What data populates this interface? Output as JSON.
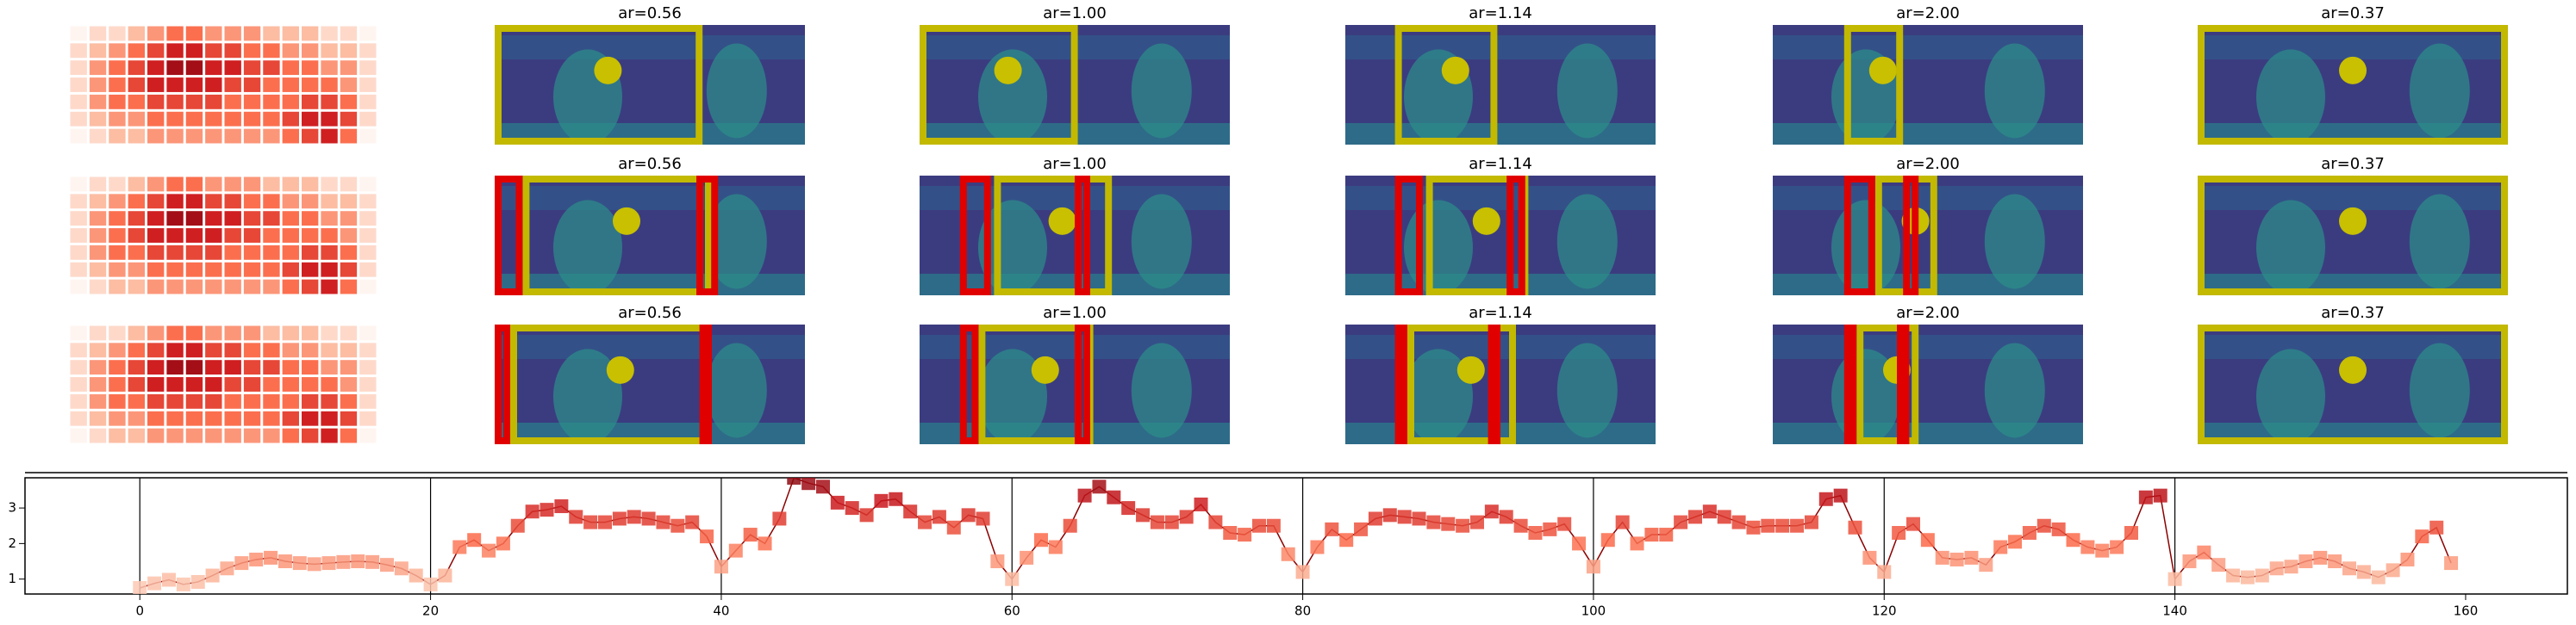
{
  "image_titles": [
    [
      "ar=0.56",
      "ar=1.00",
      "ar=1.14",
      "ar=2.00",
      "ar=0.37"
    ],
    [
      "ar=0.56",
      "ar=1.00",
      "ar=1.14",
      "ar=2.00",
      "ar=0.37"
    ],
    [
      "ar=0.56",
      "ar=1.00",
      "ar=1.14",
      "ar=2.00",
      "ar=0.37"
    ]
  ],
  "chart_data": [
    {
      "type": "heatmap",
      "colormap": "Reds",
      "values": [
        [
          1,
          2,
          2,
          3,
          4,
          5,
          5,
          4,
          4,
          4,
          3,
          3,
          3,
          2,
          2,
          1
        ],
        [
          2,
          3,
          4,
          5,
          6,
          7,
          7,
          6,
          6,
          5,
          5,
          4,
          4,
          3,
          3,
          2
        ],
        [
          2,
          4,
          5,
          6,
          7,
          8,
          8,
          7,
          7,
          6,
          6,
          5,
          5,
          4,
          4,
          2
        ],
        [
          2,
          4,
          5,
          6,
          7,
          7,
          7,
          7,
          6,
          6,
          5,
          5,
          5,
          5,
          4,
          2
        ],
        [
          2,
          4,
          5,
          5,
          6,
          6,
          6,
          6,
          5,
          5,
          5,
          5,
          6,
          6,
          5,
          2
        ],
        [
          2,
          3,
          4,
          4,
          5,
          5,
          5,
          5,
          5,
          5,
          5,
          6,
          7,
          7,
          6,
          2
        ],
        [
          1,
          2,
          3,
          3,
          4,
          4,
          4,
          4,
          4,
          4,
          4,
          5,
          6,
          7,
          5,
          1
        ]
      ]
    },
    {
      "type": "line",
      "colormap": "Reds",
      "color": "#8b0000",
      "x": [
        0,
        1,
        2,
        3,
        4,
        5,
        6,
        7,
        8,
        9,
        10,
        11,
        12,
        13,
        14,
        15,
        16,
        17,
        18,
        19,
        20,
        21,
        22,
        23,
        24,
        25,
        26,
        27,
        28,
        29,
        30,
        31,
        32,
        33,
        34,
        35,
        36,
        37,
        38,
        39,
        40,
        41,
        42,
        43,
        44,
        45,
        46,
        47,
        48,
        49,
        50,
        51,
        52,
        53,
        54,
        55,
        56,
        57,
        58,
        59,
        60,
        61,
        62,
        63,
        64,
        65,
        66,
        67,
        68,
        69,
        70,
        71,
        72,
        73,
        74,
        75,
        76,
        77,
        78,
        79,
        80,
        81,
        82,
        83,
        84,
        85,
        86,
        87,
        88,
        89,
        90,
        91,
        92,
        93,
        94,
        95,
        96,
        97,
        98,
        99,
        100,
        101,
        102,
        103,
        104,
        105,
        106,
        107,
        108,
        109,
        110,
        111,
        112,
        113,
        114,
        115,
        116,
        117,
        118,
        119,
        120,
        121,
        122,
        123,
        124,
        125,
        126,
        127,
        128,
        129,
        130,
        131,
        132,
        133,
        134,
        135,
        136,
        137,
        138,
        139,
        140,
        141,
        142,
        143,
        144,
        145,
        146,
        147,
        148,
        149,
        150,
        151,
        152,
        153,
        154,
        155,
        156,
        157,
        158,
        159
      ],
      "values": [
        0.75,
        0.88,
        0.98,
        0.85,
        0.92,
        1.1,
        1.3,
        1.45,
        1.55,
        1.6,
        1.5,
        1.45,
        1.42,
        1.45,
        1.48,
        1.5,
        1.48,
        1.4,
        1.3,
        1.1,
        0.85,
        1.1,
        1.9,
        2.1,
        1.8,
        2.0,
        2.5,
        2.9,
        2.95,
        3.05,
        2.75,
        2.6,
        2.6,
        2.7,
        2.75,
        2.7,
        2.6,
        2.5,
        2.6,
        2.2,
        1.35,
        1.8,
        2.25,
        2.0,
        2.7,
        3.85,
        3.7,
        3.6,
        3.15,
        3.0,
        2.8,
        3.2,
        3.25,
        2.9,
        2.6,
        2.75,
        2.45,
        2.8,
        2.7,
        1.5,
        1.0,
        1.6,
        2.1,
        1.9,
        2.5,
        3.35,
        3.6,
        3.3,
        3.0,
        2.8,
        2.6,
        2.6,
        2.75,
        3.1,
        2.6,
        2.3,
        2.25,
        2.5,
        2.5,
        1.7,
        1.2,
        1.9,
        2.4,
        2.1,
        2.4,
        2.7,
        2.8,
        2.75,
        2.7,
        2.6,
        2.55,
        2.5,
        2.6,
        2.9,
        2.75,
        2.5,
        2.3,
        2.4,
        2.55,
        2.0,
        1.35,
        2.1,
        2.6,
        2.0,
        2.25,
        2.25,
        2.6,
        2.75,
        2.9,
        2.75,
        2.6,
        2.45,
        2.5,
        2.5,
        2.5,
        2.6,
        3.25,
        3.35,
        2.45,
        1.6,
        1.2,
        2.3,
        2.55,
        2.1,
        1.6,
        1.55,
        1.6,
        1.4,
        1.9,
        2.05,
        2.3,
        2.5,
        2.4,
        2.1,
        1.9,
        1.8,
        1.9,
        2.3,
        3.3,
        3.35,
        1.0,
        1.5,
        1.75,
        1.4,
        1.1,
        1.05,
        1.1,
        1.3,
        1.35,
        1.5,
        1.6,
        1.5,
        1.3,
        1.2,
        1.05,
        1.25,
        1.55,
        2.2,
        2.45,
        1.45
      ],
      "vlines": [
        0,
        20,
        40,
        60,
        80,
        100,
        120,
        140
      ],
      "xlim": [
        -7.9,
        167
      ],
      "ylim": [
        0.58,
        3.85
      ],
      "xticks": [
        0,
        20,
        40,
        60,
        80,
        100,
        120,
        140,
        160
      ],
      "yticks": [
        1,
        2,
        3
      ]
    }
  ]
}
